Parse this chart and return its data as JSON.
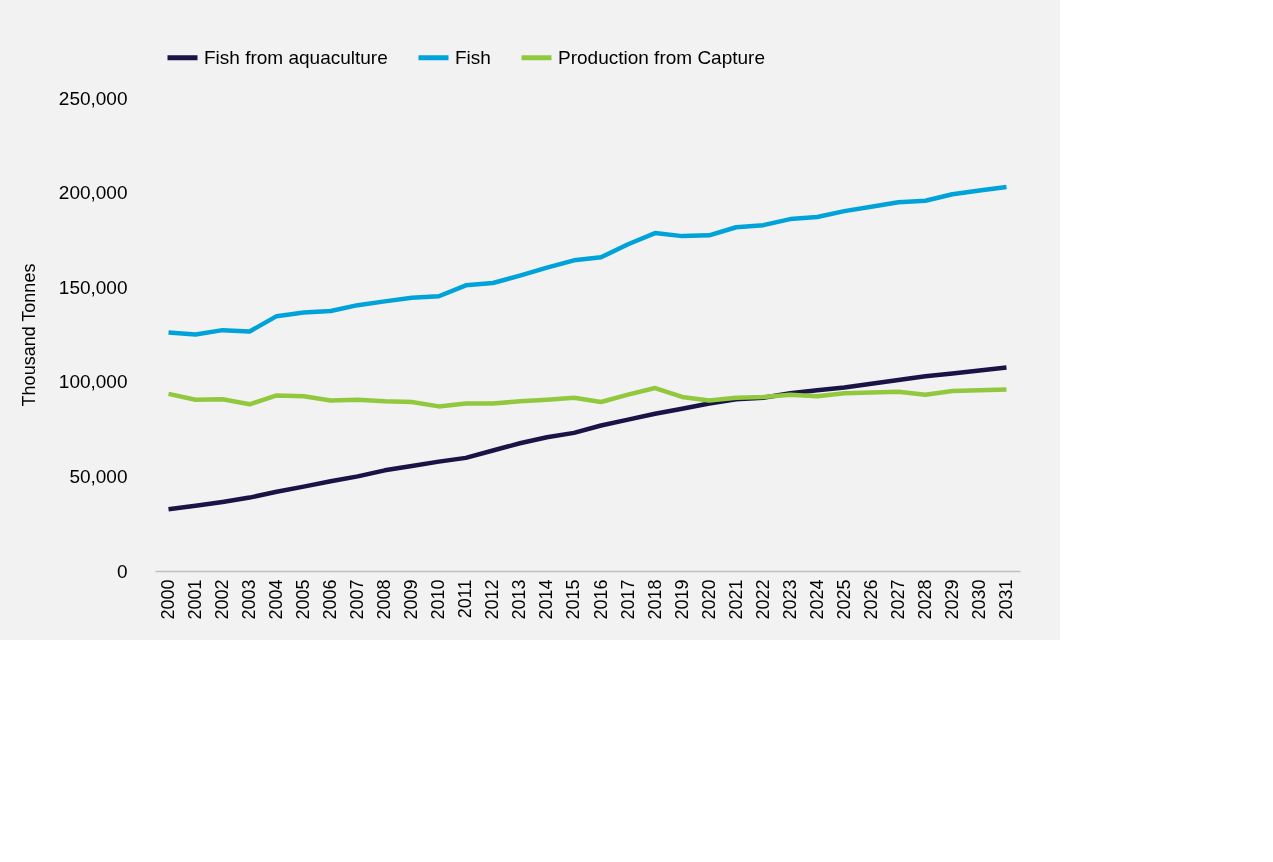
{
  "chart_data": {
    "type": "line",
    "ylabel": "Thousand Tonnes",
    "categories": [
      "2000",
      "2001",
      "2002",
      "2003",
      "2004",
      "2005",
      "2006",
      "2007",
      "2008",
      "2009",
      "2010",
      "2011",
      "2012",
      "2013",
      "2014",
      "2015",
      "2016",
      "2017",
      "2018",
      "2019",
      "2020",
      "2021",
      "2022",
      "2023",
      "2024",
      "2025",
      "2026",
      "2027",
      "2028",
      "2029",
      "2030",
      "2031"
    ],
    "series": [
      {
        "name": "Fish from aquaculture",
        "color": "#1a1446",
        "values": [
          32600,
          34500,
          36500,
          38800,
          41900,
          44600,
          47400,
          50000,
          53200,
          55500,
          57800,
          59800,
          63700,
          67500,
          70700,
          73000,
          76900,
          80000,
          83100,
          85800,
          88500,
          90800,
          91600,
          93900,
          95500,
          97000,
          99000,
          100900,
          102900,
          104400,
          106000,
          107500
        ]
      },
      {
        "name": "Fish",
        "color": "#00a3d9",
        "values": [
          126000,
          125000,
          127300,
          126600,
          134700,
          136600,
          137400,
          140500,
          142500,
          144400,
          145200,
          151000,
          152200,
          156100,
          160300,
          164200,
          165800,
          172700,
          178600,
          177000,
          177400,
          181700,
          182800,
          186000,
          187100,
          190200,
          192500,
          194900,
          195700,
          199100,
          201100,
          203000
        ]
      },
      {
        "name": "Production from Capture",
        "color": "#92c83e",
        "values": [
          93600,
          90500,
          90800,
          88100,
          92800,
          92400,
          90100,
          90500,
          89700,
          89300,
          87000,
          88500,
          88500,
          89700,
          90500,
          91600,
          89300,
          93200,
          96700,
          92000,
          90100,
          91600,
          92000,
          93200,
          92400,
          93900,
          94300,
          94700,
          93200,
          95100,
          95500,
          95900
        ]
      }
    ],
    "ylim": [
      0,
      250000
    ],
    "yticks": [
      {
        "value": 0,
        "label": "0"
      },
      {
        "value": 50000,
        "label": "50,000"
      },
      {
        "value": 100000,
        "label": "100,000"
      },
      {
        "value": 150000,
        "label": "150,000"
      },
      {
        "value": 200000,
        "label": "200,000"
      },
      {
        "value": 250000,
        "label": "250,000"
      }
    ],
    "grid": false,
    "legend": "top",
    "marker": "none",
    "line_style": "solid"
  }
}
